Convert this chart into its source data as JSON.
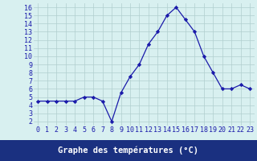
{
  "hours": [
    0,
    1,
    2,
    3,
    4,
    5,
    6,
    7,
    8,
    9,
    10,
    11,
    12,
    13,
    14,
    15,
    16,
    17,
    18,
    19,
    20,
    21,
    22,
    23
  ],
  "temperatures": [
    4.5,
    4.5,
    4.5,
    4.5,
    4.5,
    5.0,
    5.0,
    4.5,
    2.0,
    5.5,
    7.5,
    9.0,
    11.5,
    13.0,
    15.0,
    16.0,
    14.5,
    13.0,
    10.0,
    8.0,
    6.0,
    6.0,
    6.5,
    6.0
  ],
  "line_color": "#1a1aaa",
  "marker": "D",
  "marker_size": 2.2,
  "bg_color": "#d8f0f0",
  "grid_color": "#b0cece",
  "xlim": [
    -0.5,
    23.5
  ],
  "ylim": [
    1.5,
    16.5
  ],
  "yticks": [
    2,
    3,
    4,
    5,
    6,
    7,
    8,
    9,
    10,
    11,
    12,
    13,
    14,
    15,
    16
  ],
  "xticks": [
    0,
    1,
    2,
    3,
    4,
    5,
    6,
    7,
    8,
    9,
    10,
    11,
    12,
    13,
    14,
    15,
    16,
    17,
    18,
    19,
    20,
    21,
    22,
    23
  ],
  "xlabel": "Graphe des températures (°C)",
  "xlabel_color": "#1a1aaa",
  "tick_color": "#1a1aaa",
  "axis_label_fontsize": 7.5,
  "tick_fontsize": 6.0,
  "bottom_bar_color": "#1a3080",
  "bottom_label_color": "#ffffff"
}
